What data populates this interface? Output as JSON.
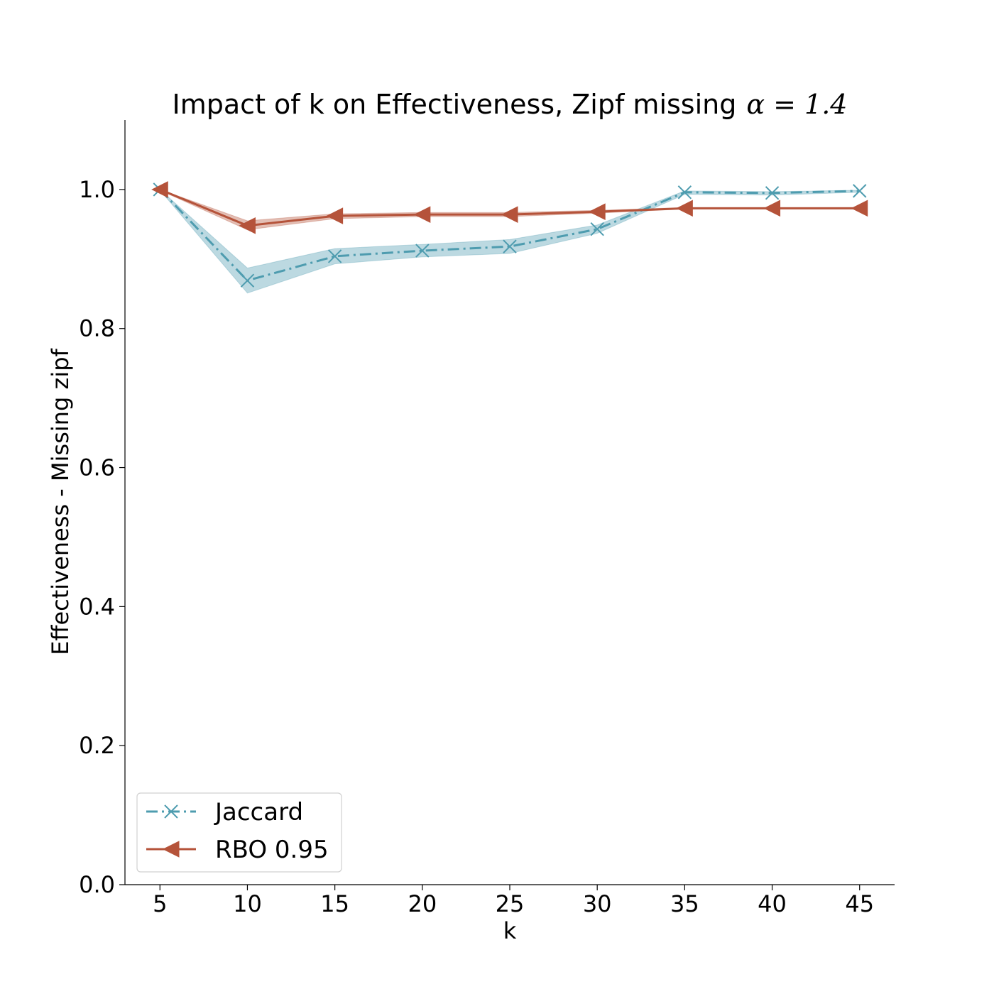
{
  "chart_data": {
    "type": "line",
    "title": "Impact of k on Effectiveness, Zipf missing",
    "title_math": "α = 1.4",
    "xlabel": "k",
    "ylabel": "Effectiveness - Missing zipf",
    "x": [
      5,
      10,
      15,
      20,
      25,
      30,
      35,
      40,
      45
    ],
    "x_ticks": [
      "5",
      "10",
      "15",
      "20",
      "25",
      "30",
      "35",
      "40",
      "45"
    ],
    "y_ticks": [
      "0.0",
      "0.2",
      "0.4",
      "0.6",
      "0.8",
      "1.0"
    ],
    "ylim": [
      0,
      1.1
    ],
    "xlim": [
      3,
      47
    ],
    "grid": false,
    "legend_position": "lower-left",
    "series": [
      {
        "name": "Jaccard",
        "color": "#4e9caf",
        "marker": "x",
        "line_style": "dashdot",
        "values": [
          1.0,
          0.869,
          0.904,
          0.912,
          0.918,
          0.943,
          0.996,
          0.995,
          0.998
        ],
        "band_low": [
          0.999,
          0.851,
          0.893,
          0.903,
          0.908,
          0.937,
          0.993,
          0.992,
          0.996
        ],
        "band_high": [
          1.0,
          0.887,
          0.915,
          0.921,
          0.928,
          0.949,
          0.998,
          0.997,
          0.999
        ]
      },
      {
        "name": "RBO 0.95",
        "color": "#b5533a",
        "marker": "triangle-left",
        "line_style": "solid",
        "values": [
          1.0,
          0.948,
          0.962,
          0.964,
          0.964,
          0.968,
          0.973,
          0.973,
          0.973
        ],
        "band_low": [
          0.999,
          0.942,
          0.958,
          0.961,
          0.961,
          0.966,
          0.972,
          0.972,
          0.972
        ],
        "band_high": [
          1.0,
          0.955,
          0.965,
          0.967,
          0.967,
          0.97,
          0.974,
          0.974,
          0.974
        ]
      }
    ]
  }
}
